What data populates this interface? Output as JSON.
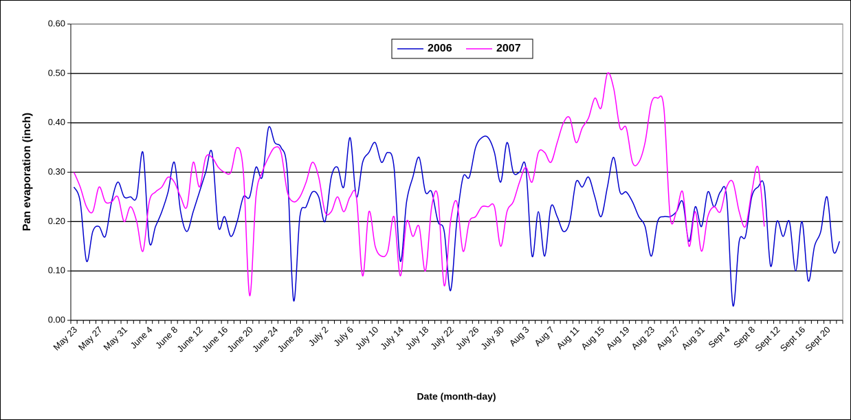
{
  "chart_data": {
    "type": "line",
    "x_label": "Date (month-day)",
    "y_label": "Pan evaporation (inch)",
    "categories": [
      "May 23",
      null,
      null,
      null,
      "May 27",
      null,
      null,
      null,
      "May 31",
      null,
      null,
      null,
      "June 4",
      null,
      null,
      null,
      "June 8",
      null,
      null,
      null,
      "June 12",
      null,
      null,
      null,
      "June 16",
      null,
      null,
      null,
      "June 20",
      null,
      null,
      null,
      "June 24",
      null,
      null,
      null,
      "June 28",
      null,
      null,
      null,
      "July 2",
      null,
      null,
      null,
      "July 6",
      null,
      null,
      null,
      "July 10",
      null,
      null,
      null,
      "July 14",
      null,
      null,
      null,
      "July 18",
      null,
      null,
      null,
      "July 22",
      null,
      null,
      null,
      "July 26",
      null,
      null,
      null,
      "July 30",
      null,
      null,
      null,
      "Aug 3",
      null,
      null,
      null,
      "Aug 7",
      null,
      null,
      null,
      "Aug 11",
      null,
      null,
      null,
      "Aug 15",
      null,
      null,
      null,
      "Aug 19",
      null,
      null,
      null,
      "Aug 23",
      null,
      null,
      null,
      "Aug 27",
      null,
      null,
      null,
      "Aug 31",
      null,
      null,
      null,
      "Sept 4",
      null,
      null,
      null,
      "Sept 8",
      null,
      null,
      null,
      "Sept 12",
      null,
      null,
      null,
      "Sept 16",
      null,
      null,
      null,
      "Sept 20",
      null,
      null
    ],
    "series": [
      {
        "name": "2006",
        "color": "#0000cc",
        "values": [
          0.27,
          0.24,
          0.12,
          0.18,
          0.19,
          0.17,
          0.24,
          0.28,
          0.25,
          0.25,
          0.25,
          0.34,
          0.16,
          0.19,
          0.22,
          0.26,
          0.32,
          0.22,
          0.18,
          0.22,
          0.26,
          0.3,
          0.34,
          0.19,
          0.21,
          0.17,
          0.2,
          0.25,
          0.25,
          0.31,
          0.29,
          0.39,
          0.36,
          0.35,
          0.3,
          0.04,
          0.21,
          0.23,
          0.26,
          0.25,
          0.2,
          0.29,
          0.31,
          0.27,
          0.37,
          0.25,
          0.32,
          0.34,
          0.36,
          0.32,
          0.34,
          0.31,
          0.12,
          0.24,
          0.29,
          0.33,
          0.26,
          0.26,
          0.2,
          0.18,
          0.06,
          0.2,
          0.29,
          0.29,
          0.35,
          0.37,
          0.37,
          0.34,
          0.28,
          0.36,
          0.3,
          0.3,
          0.31,
          0.13,
          0.22,
          0.13,
          0.23,
          0.21,
          0.18,
          0.2,
          0.28,
          0.27,
          0.29,
          0.25,
          0.21,
          0.27,
          0.33,
          0.26,
          0.26,
          0.24,
          0.21,
          0.19,
          0.13,
          0.2,
          0.21,
          0.21,
          0.22,
          0.24,
          0.16,
          0.23,
          0.19,
          0.26,
          0.23,
          0.26,
          0.25,
          0.03,
          0.16,
          0.17,
          0.25,
          0.27,
          0.27,
          0.11,
          0.2,
          0.17,
          0.2,
          0.1,
          0.2,
          0.08,
          0.15,
          0.18,
          0.25,
          0.14,
          0.16
        ]
      },
      {
        "name": "2007",
        "color": "#ff00ff",
        "values": [
          0.3,
          0.27,
          0.23,
          0.22,
          0.27,
          0.24,
          0.24,
          0.25,
          0.2,
          0.23,
          0.2,
          0.14,
          0.24,
          0.26,
          0.27,
          0.29,
          0.28,
          0.25,
          0.23,
          0.32,
          0.27,
          0.33,
          0.33,
          0.31,
          0.3,
          0.3,
          0.35,
          0.3,
          0.05,
          0.25,
          0.3,
          0.33,
          0.35,
          0.34,
          0.26,
          0.24,
          0.25,
          0.28,
          0.32,
          0.29,
          0.22,
          0.22,
          0.25,
          0.22,
          0.25,
          0.25,
          0.09,
          0.22,
          0.15,
          0.13,
          0.14,
          0.21,
          0.09,
          0.2,
          0.17,
          0.19,
          0.1,
          0.23,
          0.25,
          0.07,
          0.2,
          0.24,
          0.14,
          0.2,
          0.21,
          0.23,
          0.23,
          0.23,
          0.15,
          0.22,
          0.24,
          0.28,
          0.31,
          0.28,
          0.34,
          0.34,
          0.32,
          0.36,
          0.4,
          0.41,
          0.36,
          0.39,
          0.41,
          0.45,
          0.43,
          0.5,
          0.47,
          0.39,
          0.39,
          0.32,
          0.32,
          0.36,
          0.44,
          0.45,
          0.43,
          0.21,
          0.22,
          0.26,
          0.15,
          0.22,
          0.14,
          0.21,
          0.23,
          0.22,
          0.27,
          0.28,
          0.22,
          0.19,
          0.26,
          0.31,
          0.19,
          null,
          null,
          null,
          null,
          null,
          null,
          null,
          null,
          null,
          null,
          null,
          null
        ]
      }
    ],
    "ylim": [
      0,
      0.6
    ],
    "yticks": [
      {
        "value": 0,
        "label": "0.00"
      },
      {
        "value": 0.1,
        "label": "0.10"
      },
      {
        "value": 0.2,
        "label": "0.20"
      },
      {
        "value": 0.3,
        "label": "0.30"
      },
      {
        "value": 0.4,
        "label": "0.40"
      },
      {
        "value": 0.5,
        "label": "0.50"
      },
      {
        "value": 0.6,
        "label": "0.60"
      }
    ],
    "grid": true,
    "legend": "top"
  }
}
